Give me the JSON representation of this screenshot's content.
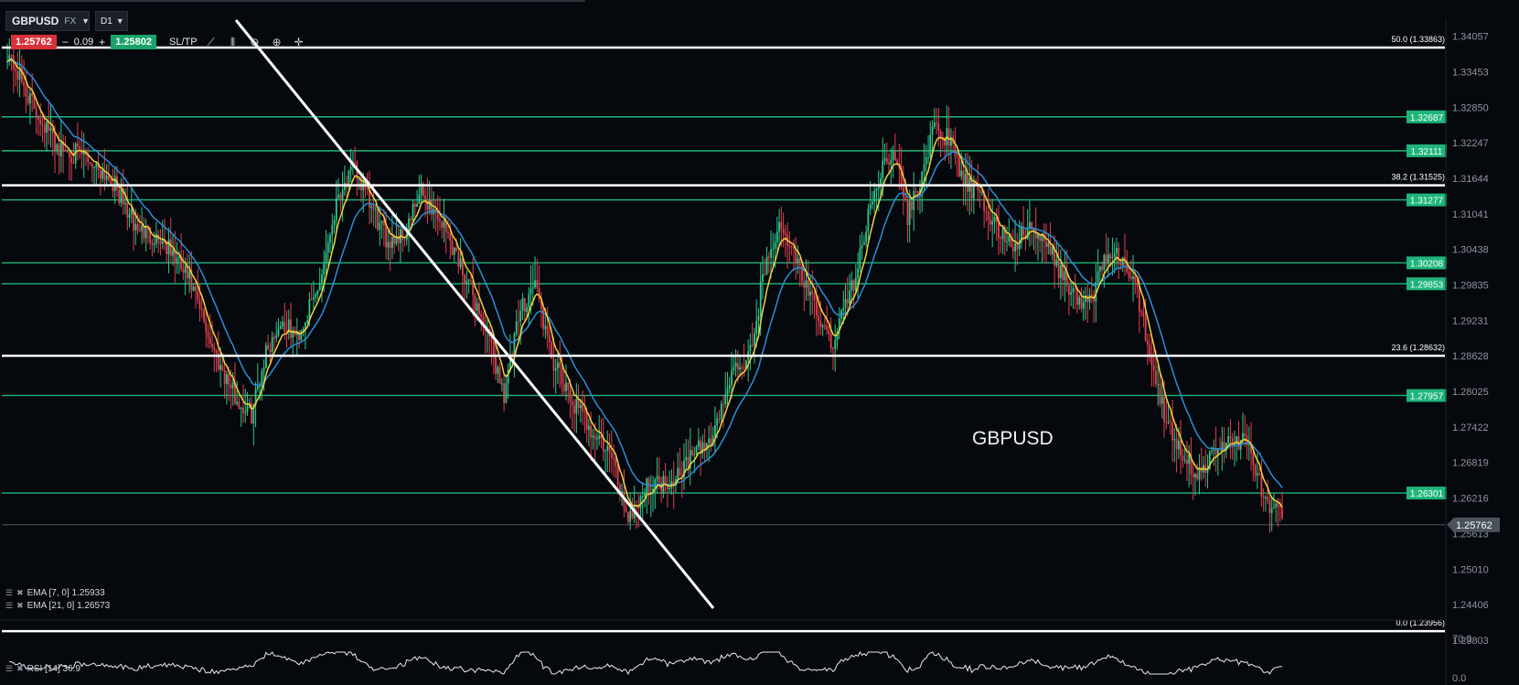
{
  "toolbar": {
    "symbol": "GBPUSD",
    "instrument_class": "FX",
    "timeframe": "D1",
    "bid": "1.25762",
    "minus": "−",
    "qty": "0.09",
    "plus": "+",
    "ask": "1.25802",
    "sltp": "SL/TP",
    "icons": [
      "line-chart-icon",
      "candles-icon",
      "zoom-out-icon",
      "zoom-in-icon",
      "crosshair-icon"
    ]
  },
  "watermark": "GBPUSD",
  "indicators": {
    "ema7": "EMA [7, 0] 1.25933",
    "ema21": "EMA [21, 0] 1.26573",
    "rsi": "RSI [14] 36.9"
  },
  "price_axis": {
    "ticks": [
      "1.34057",
      "1.33453",
      "1.32850",
      "1.32247",
      "1.31644",
      "1.31041",
      "1.30438",
      "1.29835",
      "1.29231",
      "1.28628",
      "1.28025",
      "1.27422",
      "1.26819",
      "1.26216",
      "1.25613",
      "1.25010",
      "1.24406",
      "1.23803"
    ],
    "current_price": "1.25762"
  },
  "rsi_axis": {
    "ticks": [
      "70.0",
      "0.0"
    ]
  },
  "levels": {
    "fib": [
      {
        "label": "50.0 (1.33863)",
        "price": 1.33863
      },
      {
        "label": "38.2 (1.31525)",
        "price": 1.31525
      },
      {
        "label": "23.6 (1.28632)",
        "price": 1.28632
      },
      {
        "label": "0.0 (1.23956)",
        "price": 1.23956
      }
    ],
    "horizontal": [
      "1.32687",
      "1.32111",
      "1.31277",
      "1.30208",
      "1.29853",
      "1.27957",
      "1.26301"
    ]
  },
  "chart_data": {
    "type": "candlestick",
    "y_range": [
      1.23803,
      1.3436
    ],
    "ema7_color": "#f2d23b",
    "ema21_color": "#2a8fd6",
    "up_color": "#2fc78a",
    "down_color": "#e0414f",
    "level_color": "#1fb57a",
    "fib_color": "#ffffff",
    "close_keypoints": [
      [
        0,
        1.338
      ],
      [
        12,
        1.329
      ],
      [
        25,
        1.3215
      ],
      [
        38,
        1.32
      ],
      [
        50,
        1.3165
      ],
      [
        62,
        1.308
      ],
      [
        75,
        1.306
      ],
      [
        88,
        1.299
      ],
      [
        100,
        1.287
      ],
      [
        112,
        1.278
      ],
      [
        118,
        1.2765
      ],
      [
        125,
        1.287
      ],
      [
        132,
        1.292
      ],
      [
        140,
        1.2895
      ],
      [
        150,
        1.2975
      ],
      [
        160,
        1.314
      ],
      [
        168,
        1.318
      ],
      [
        175,
        1.312
      ],
      [
        183,
        1.306
      ],
      [
        192,
        1.307
      ],
      [
        200,
        1.314
      ],
      [
        210,
        1.309
      ],
      [
        220,
        1.301
      ],
      [
        230,
        1.292
      ],
      [
        240,
        1.28
      ],
      [
        248,
        1.294
      ],
      [
        255,
        1.299
      ],
      [
        262,
        1.287
      ],
      [
        270,
        1.28
      ],
      [
        280,
        1.275
      ],
      [
        292,
        1.269
      ],
      [
        300,
        1.259
      ],
      [
        310,
        1.2645
      ],
      [
        320,
        1.265
      ],
      [
        330,
        1.269
      ],
      [
        340,
        1.272
      ],
      [
        350,
        1.283
      ],
      [
        360,
        1.287
      ],
      [
        365,
        1.3
      ],
      [
        372,
        1.308
      ],
      [
        380,
        1.304
      ],
      [
        388,
        1.296
      ],
      [
        398,
        1.288
      ],
      [
        410,
        1.3
      ],
      [
        420,
        1.316
      ],
      [
        428,
        1.322
      ],
      [
        435,
        1.31
      ],
      [
        440,
        1.315
      ],
      [
        448,
        1.325
      ],
      [
        455,
        1.323
      ],
      [
        462,
        1.316
      ],
      [
        470,
        1.313
      ],
      [
        478,
        1.308
      ],
      [
        486,
        1.305
      ],
      [
        494,
        1.308
      ],
      [
        502,
        1.305
      ],
      [
        510,
        1.3
      ],
      [
        518,
        1.295
      ],
      [
        524,
        1.296
      ],
      [
        530,
        1.303
      ],
      [
        538,
        1.303
      ],
      [
        545,
        1.298
      ],
      [
        552,
        1.287
      ],
      [
        560,
        1.275
      ],
      [
        568,
        1.27
      ],
      [
        575,
        1.266
      ],
      [
        582,
        1.269
      ],
      [
        590,
        1.272
      ],
      [
        598,
        1.272
      ],
      [
        604,
        1.266
      ],
      [
        610,
        1.26
      ],
      [
        616,
        1.259
      ]
    ]
  }
}
